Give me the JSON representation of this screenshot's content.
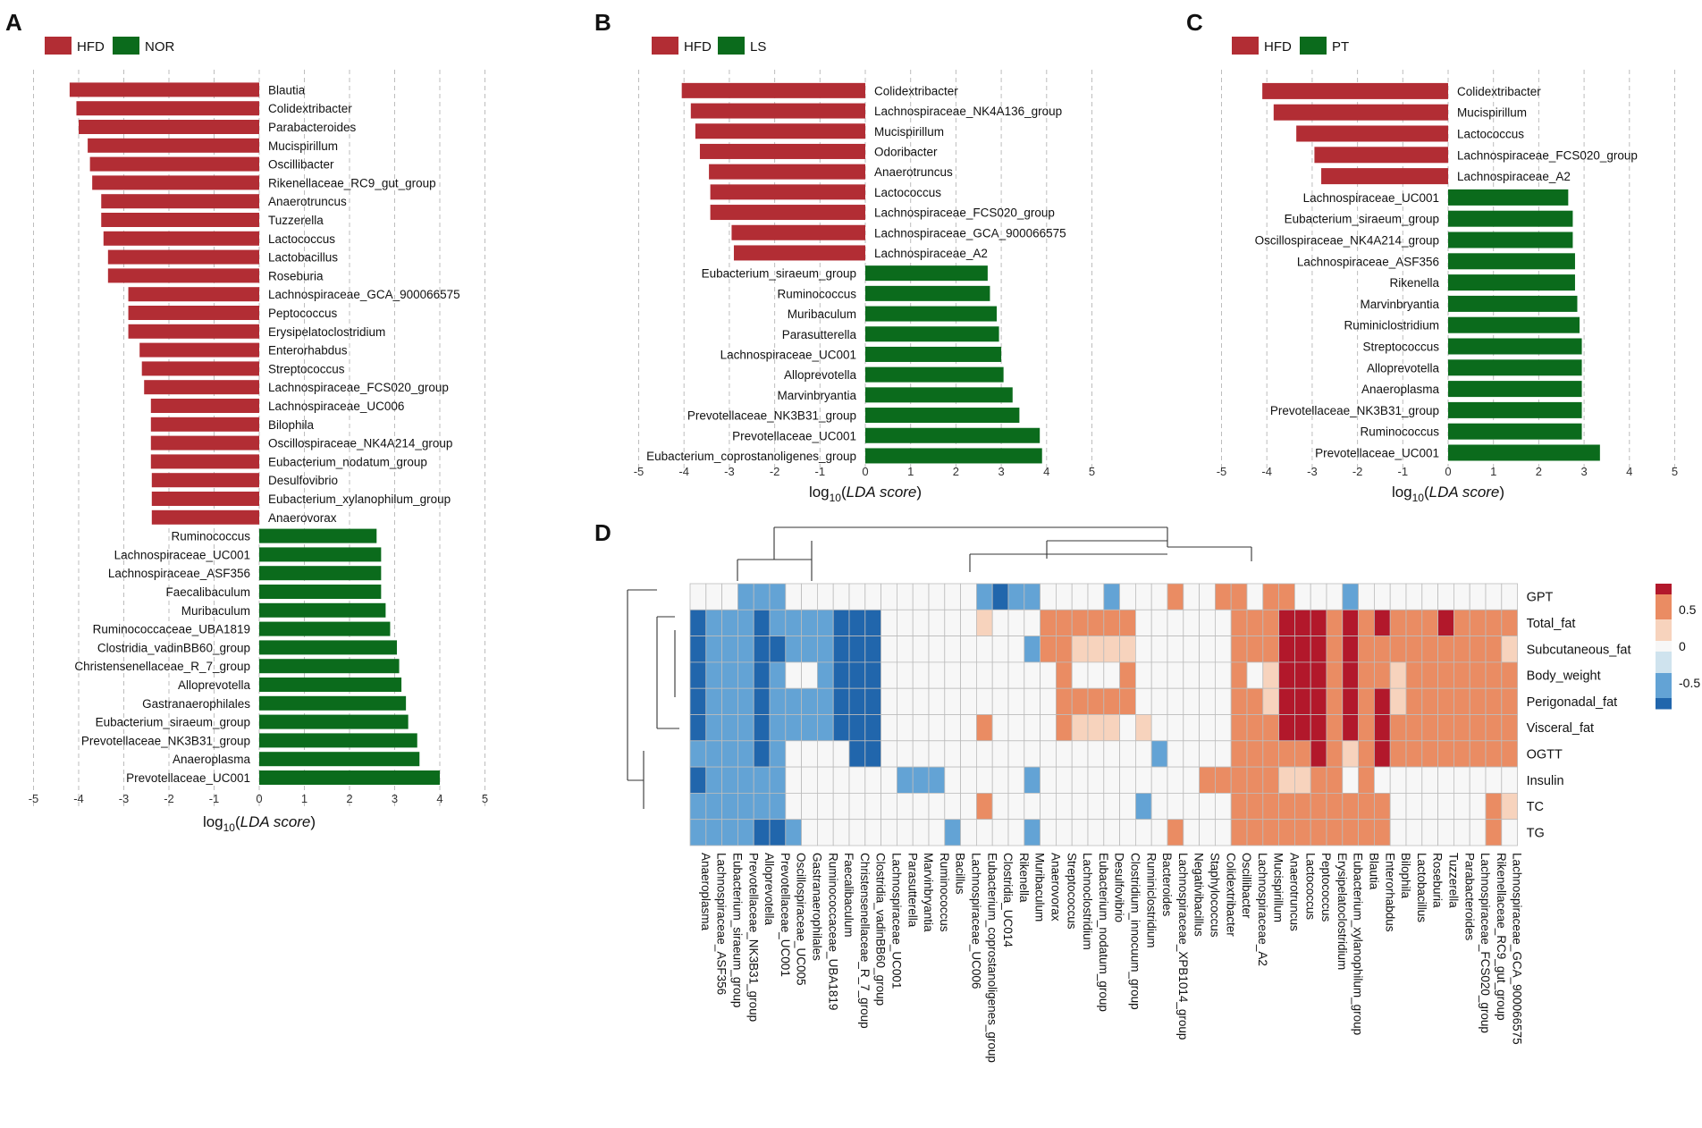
{
  "colors": {
    "HFD": "#b22d34",
    "control": "#0b6b1c",
    "grid": "#bdbdbd",
    "hm_neg2": "#2166ac",
    "hm_neg1": "#63a3d5",
    "hm_neg0": "#cfe3ee",
    "hm_zero": "#f7f7f7",
    "hm_pos0": "#f7d3bd",
    "hm_pos1": "#ea8c63",
    "hm_pos2": "#b2182b",
    "hm_border": "#bcbcbc"
  },
  "panels": {
    "A": {
      "letter": "A",
      "legend": [
        "HFD",
        "NOR"
      ],
      "xlabel_prefix": "log",
      "xlabel_sub": "10",
      "xlabel_italic": "LDA score",
      "xlabel_open": "(",
      "xlabel_close": ")"
    },
    "B": {
      "letter": "B",
      "legend": [
        "HFD",
        "LS"
      ],
      "xlabel_prefix": "log",
      "xlabel_sub": "10",
      "xlabel_italic": "LDA score",
      "xlabel_open": "(",
      "xlabel_close": ")"
    },
    "C": {
      "letter": "C",
      "legend": [
        "HFD",
        "PT"
      ],
      "xlabel_prefix": "log",
      "xlabel_sub": "10",
      "xlabel_italic": "LDA score",
      "xlabel_open": "(",
      "xlabel_close": ")"
    },
    "D": {
      "letter": "D"
    }
  },
  "chart_data": [
    {
      "panel": "A",
      "type": "bar",
      "orientation": "horizontal",
      "xlabel": "log10(LDA score)",
      "xlim": [
        -5,
        5
      ],
      "xticks": [
        -5,
        -4,
        -3,
        -2,
        -1,
        0,
        1,
        2,
        3,
        4,
        5
      ],
      "series": [
        {
          "name": "HFD",
          "categories": [
            "Blautia",
            "Colidextribacter",
            "Parabacteroides",
            "Mucispirillum",
            "Oscillibacter",
            "Rikenellaceae_RC9_gut_group",
            "Anaerotruncus",
            "Tuzzerella",
            "Lactococcus",
            "Lactobacillus",
            "Roseburia",
            "Lachnospiraceae_GCA_900066575",
            "Peptococcus",
            "Erysipelatoclostridium",
            "Enterorhabdus",
            "Streptococcus",
            "Lachnospiraceae_FCS020_group",
            "Lachnospiraceae_UC006",
            "Bilophila",
            "Oscillospiraceae_NK4A214_group",
            "Eubacterium_nodatum_group",
            "Desulfovibrio",
            "Eubacterium_xylanophilum_group",
            "Anaerovorax"
          ],
          "values": [
            -4.2,
            -4.05,
            -4.0,
            -3.8,
            -3.75,
            -3.7,
            -3.5,
            -3.5,
            -3.45,
            -3.35,
            -3.35,
            -2.9,
            -2.9,
            -2.9,
            -2.65,
            -2.6,
            -2.55,
            -2.4,
            -2.4,
            -2.4,
            -2.4,
            -2.38,
            -2.38,
            -2.38
          ]
        },
        {
          "name": "NOR",
          "categories": [
            "Ruminococcus",
            "Lachnospiraceae_UC001",
            "Lachnospiraceae_ASF356",
            "Faecalibaculum",
            "Muribaculum",
            "Ruminococcaceae_UBA1819",
            "Clostridia_vadinBB60_group",
            "Christensenellaceae_R_7_group",
            "Alloprevotella",
            "Gastranaerophilales",
            "Eubacterium_siraeum_group",
            "Prevotellaceae_NK3B31_group",
            "Anaeroplasma",
            "Prevotellaceae_UC001"
          ],
          "values": [
            2.6,
            2.7,
            2.7,
            2.7,
            2.8,
            2.9,
            3.05,
            3.1,
            3.15,
            3.25,
            3.3,
            3.5,
            3.55,
            4.0
          ]
        }
      ]
    },
    {
      "panel": "B",
      "type": "bar",
      "orientation": "horizontal",
      "xlabel": "log10(LDA score)",
      "xlim": [
        -5,
        5
      ],
      "xticks": [
        -5,
        -4,
        -3,
        -2,
        -1,
        0,
        1,
        2,
        3,
        4,
        5
      ],
      "series": [
        {
          "name": "HFD",
          "categories": [
            "Colidextribacter",
            "Lachnospiraceae_NK4A136_group",
            "Mucispirillum",
            "Odoribacter",
            "Anaerotruncus",
            "Lactococcus",
            "Lachnospiraceae_FCS020_group",
            "Lachnospiraceae_GCA_900066575",
            "Lachnospiraceae_A2"
          ],
          "values": [
            -4.05,
            -3.85,
            -3.75,
            -3.65,
            -3.45,
            -3.42,
            -3.42,
            -2.95,
            -2.9
          ]
        },
        {
          "name": "LS",
          "categories": [
            "Eubacterium_siraeum_group",
            "Ruminococcus",
            "Muribaculum",
            "Parasutterella",
            "Lachnospiraceae_UC001",
            "Alloprevotella",
            "Marvinbryantia",
            "Prevotellaceae_NK3B31_group",
            "Prevotellaceae_UC001",
            "Eubacterium_coprostanoligenes_group"
          ],
          "values": [
            2.7,
            2.75,
            2.9,
            2.95,
            3.0,
            3.05,
            3.25,
            3.4,
            3.85,
            3.9
          ]
        }
      ]
    },
    {
      "panel": "C",
      "type": "bar",
      "orientation": "horizontal",
      "xlabel": "log10(LDA score)",
      "xlim": [
        -5,
        5
      ],
      "xticks": [
        -5,
        -4,
        -3,
        -2,
        -1,
        0,
        1,
        2,
        3,
        4,
        5
      ],
      "series": [
        {
          "name": "HFD",
          "categories": [
            "Colidextribacter",
            "Mucispirillum",
            "Lactococcus",
            "Lachnospiraceae_FCS020_group",
            "Lachnospiraceae_A2"
          ],
          "values": [
            -4.1,
            -3.85,
            -3.35,
            -2.95,
            -2.8
          ]
        },
        {
          "name": "PT",
          "categories": [
            "Lachnospiraceae_UC001",
            "Eubacterium_siraeum_group",
            "Oscillospiraceae_NK4A214_group",
            "Lachnospiraceae_ASF356",
            "Rikenella",
            "Marvinbryantia",
            "Ruminiclostridium",
            "Streptococcus",
            "Alloprevotella",
            "Anaeroplasma",
            "Prevotellaceae_NK3B31_group",
            "Ruminococcus",
            "Prevotellaceae_UC001"
          ],
          "values": [
            2.65,
            2.75,
            2.75,
            2.8,
            2.8,
            2.85,
            2.9,
            2.95,
            2.95,
            2.95,
            2.95,
            2.95,
            3.35
          ]
        }
      ]
    },
    {
      "panel": "D",
      "type": "heatmap",
      "rows": [
        "GPT",
        "Total_fat",
        "Subcutaneous_fat",
        "Body_weight",
        "Perigonadal_fat",
        "Visceral_fat",
        "OGTT",
        "Insulin",
        "TC",
        "TG"
      ],
      "columns": [
        "Anaeroplasma",
        "Lachnospiraceae_ASF356",
        "Eubacterium_siraeum_group",
        "Prevotellaceae_NK3B31_group",
        "Alloprevotella",
        "Prevotellaceae_UC001",
        "Oscillospiraceae_UC005",
        "Gastranaerophilales",
        "Ruminococcaceae_UBA1819",
        "Faecalibaculum",
        "Christensenellaceae_R_7_group",
        "Clostridia_vadinBB60_group",
        "Lachnospiraceae_UC001",
        "Parasutterella",
        "Marvinbryantia",
        "Ruminococcus",
        "Bacillus",
        "Lachnospiraceae_UC006",
        "Eubacterium_coprostanoligenes_group",
        "Clostridia_UC014",
        "Rikenella",
        "Muribaculum",
        "Anaerovorax",
        "Streptococcus",
        "Lachnoclostridium",
        "Eubacterium_nodatum_group",
        "Desulfovibrio",
        "Clostridium_innocuum_group",
        "Ruminiclostridium",
        "Bacteroides",
        "Lachnospiraceae_XPB1014_group",
        "Negativibacillus",
        "Staphylococcus",
        "Colidextribacter",
        "Oscillibacter",
        "Lachnospiraceae_A2",
        "Mucispirillum",
        "Anaerotruncus",
        "Lactococcus",
        "Peptococcus",
        "Erysipelatoclostridium",
        "Eubacterium_xylanophilum_group",
        "Blautia",
        "Enterorhabdus",
        "Bilophila",
        "Lactobacillus",
        "Roseburia",
        "Tuzzerella",
        "Parabacteroides",
        "Lachnospiraceae_FCS020_group",
        "Rikenellaceae_RC9_gut_group",
        "Lachnospiraceae_GCA_900066575"
      ],
      "colorbar": {
        "ticks": [
          "0.5",
          "0",
          "-0.5"
        ],
        "range": [
          -0.85,
          0.85
        ]
      },
      "values": [
        [
          0,
          0,
          0,
          -0.5,
          -0.5,
          -0.5,
          0,
          0,
          0,
          0,
          0,
          0,
          0,
          0,
          0,
          0,
          0,
          0,
          -0.5,
          -0.8,
          -0.5,
          -0.5,
          0,
          0,
          0,
          0,
          -0.5,
          0,
          0,
          0,
          0.5,
          0,
          0,
          0.5,
          0.5,
          0,
          0.5,
          0.5,
          0,
          0,
          0,
          -0.5,
          0,
          0,
          0,
          0,
          0,
          0,
          0,
          0,
          0,
          0
        ],
        [
          -0.8,
          -0.5,
          -0.5,
          -0.5,
          -0.8,
          -0.5,
          -0.5,
          -0.5,
          -0.5,
          -0.8,
          -0.8,
          -0.8,
          0,
          0,
          0,
          0,
          0,
          0,
          0.2,
          0,
          0,
          0,
          0.5,
          0.5,
          0.5,
          0.5,
          0.5,
          0.5,
          0,
          0,
          0,
          0,
          0,
          0,
          0.5,
          0.5,
          0.5,
          0.8,
          0.8,
          0.8,
          0.5,
          0.8,
          0.5,
          0.8,
          0.5,
          0.5,
          0.5,
          0.8,
          0.5,
          0.5,
          0.5,
          0.5
        ],
        [
          -0.8,
          -0.5,
          -0.5,
          -0.5,
          -0.8,
          -0.8,
          -0.5,
          -0.5,
          -0.5,
          -0.8,
          -0.8,
          -0.8,
          0,
          0,
          0,
          0,
          0,
          0,
          0,
          0,
          0,
          -0.5,
          0.5,
          0.5,
          0.2,
          0.2,
          0.2,
          0.2,
          0,
          0,
          0,
          0,
          0,
          0,
          0.5,
          0.5,
          0.5,
          0.8,
          0.8,
          0.8,
          0.5,
          0.8,
          0.5,
          0.5,
          0.5,
          0.5,
          0.5,
          0.5,
          0.5,
          0.5,
          0.5,
          0.2
        ],
        [
          -0.8,
          -0.5,
          -0.5,
          -0.5,
          -0.8,
          -0.5,
          0,
          0,
          -0.5,
          -0.8,
          -0.8,
          -0.8,
          0,
          0,
          0,
          0,
          0,
          0,
          0,
          0,
          0,
          0,
          0,
          0.5,
          0,
          0,
          0,
          0.5,
          0,
          0,
          0,
          0,
          0,
          0,
          0.5,
          0,
          0.2,
          0.8,
          0.8,
          0.8,
          0.5,
          0.8,
          0.5,
          0.5,
          0.2,
          0.5,
          0.5,
          0.5,
          0.5,
          0.5,
          0.5,
          0.5
        ],
        [
          -0.8,
          -0.5,
          -0.5,
          -0.5,
          -0.8,
          -0.5,
          -0.5,
          -0.5,
          -0.5,
          -0.8,
          -0.8,
          -0.8,
          0,
          0,
          0,
          0,
          0,
          0,
          0,
          0,
          0,
          0,
          0,
          0.5,
          0.5,
          0.5,
          0.5,
          0.5,
          0,
          0,
          0,
          0,
          0,
          0,
          0.5,
          0.5,
          0.2,
          0.8,
          0.8,
          0.8,
          0.5,
          0.8,
          0.5,
          0.8,
          0.2,
          0.5,
          0.5,
          0.5,
          0.5,
          0.5,
          0.5,
          0.5
        ],
        [
          -0.8,
          -0.5,
          -0.5,
          -0.5,
          -0.8,
          -0.5,
          -0.5,
          -0.5,
          -0.5,
          -0.8,
          -0.8,
          -0.8,
          0,
          0,
          0,
          0,
          0,
          0,
          0.5,
          0,
          0,
          0,
          0,
          0.5,
          0.2,
          0.2,
          0.2,
          0,
          0.2,
          0,
          0,
          0,
          0,
          0,
          0.5,
          0.5,
          0.5,
          0.8,
          0.8,
          0.8,
          0.5,
          0.8,
          0.5,
          0.8,
          0.5,
          0.5,
          0.5,
          0.5,
          0.5,
          0.5,
          0.5,
          0.5
        ],
        [
          -0.5,
          -0.5,
          -0.5,
          -0.5,
          -0.8,
          -0.5,
          0,
          0,
          0,
          0,
          -0.8,
          -0.8,
          0,
          0,
          0,
          0,
          0,
          0,
          0,
          0,
          0,
          0,
          0,
          0,
          0,
          0,
          0,
          0,
          0,
          -0.5,
          0,
          0,
          0,
          0,
          0.5,
          0.5,
          0.5,
          0.5,
          0.5,
          0.8,
          0.5,
          0.2,
          0.5,
          0.8,
          0.5,
          0.5,
          0.5,
          0.5,
          0.5,
          0.5,
          0.5,
          0.5
        ],
        [
          -0.8,
          -0.5,
          -0.5,
          -0.5,
          -0.5,
          -0.5,
          0,
          0,
          0,
          0,
          0,
          0,
          0,
          -0.5,
          -0.5,
          -0.5,
          0,
          0,
          0,
          0,
          0,
          -0.5,
          0,
          0,
          0,
          0,
          0,
          0,
          0,
          0,
          0,
          0,
          0.5,
          0.5,
          0.5,
          0.5,
          0.5,
          0.2,
          0.2,
          0.5,
          0.5,
          0,
          0.5,
          0,
          0,
          0,
          0,
          0,
          0,
          0,
          0,
          0
        ],
        [
          -0.5,
          -0.5,
          -0.5,
          -0.5,
          -0.5,
          -0.5,
          0,
          0,
          0,
          0,
          0,
          0,
          0,
          0,
          0,
          0,
          0,
          0,
          0.5,
          0,
          0,
          0,
          0,
          0,
          0,
          0,
          0,
          0,
          -0.5,
          0,
          0,
          0,
          0,
          0,
          0.5,
          0.5,
          0.5,
          0.5,
          0.5,
          0.5,
          0.5,
          0.5,
          0.5,
          0.5,
          0,
          0,
          0,
          0,
          0,
          0,
          0.5,
          0.2
        ],
        [
          -0.5,
          -0.5,
          -0.5,
          -0.5,
          -0.8,
          -0.8,
          -0.5,
          0,
          0,
          0,
          0,
          0,
          0,
          0,
          0,
          0,
          -0.5,
          0,
          0,
          0,
          0,
          -0.5,
          0,
          0,
          0,
          0,
          0,
          0,
          0,
          0,
          0.5,
          0,
          0,
          0,
          0.5,
          0.5,
          0.5,
          0.5,
          0.5,
          0.5,
          0.5,
          0.5,
          0.5,
          0.5,
          0,
          0,
          0,
          0,
          0,
          0,
          0.5,
          0
        ]
      ]
    }
  ]
}
